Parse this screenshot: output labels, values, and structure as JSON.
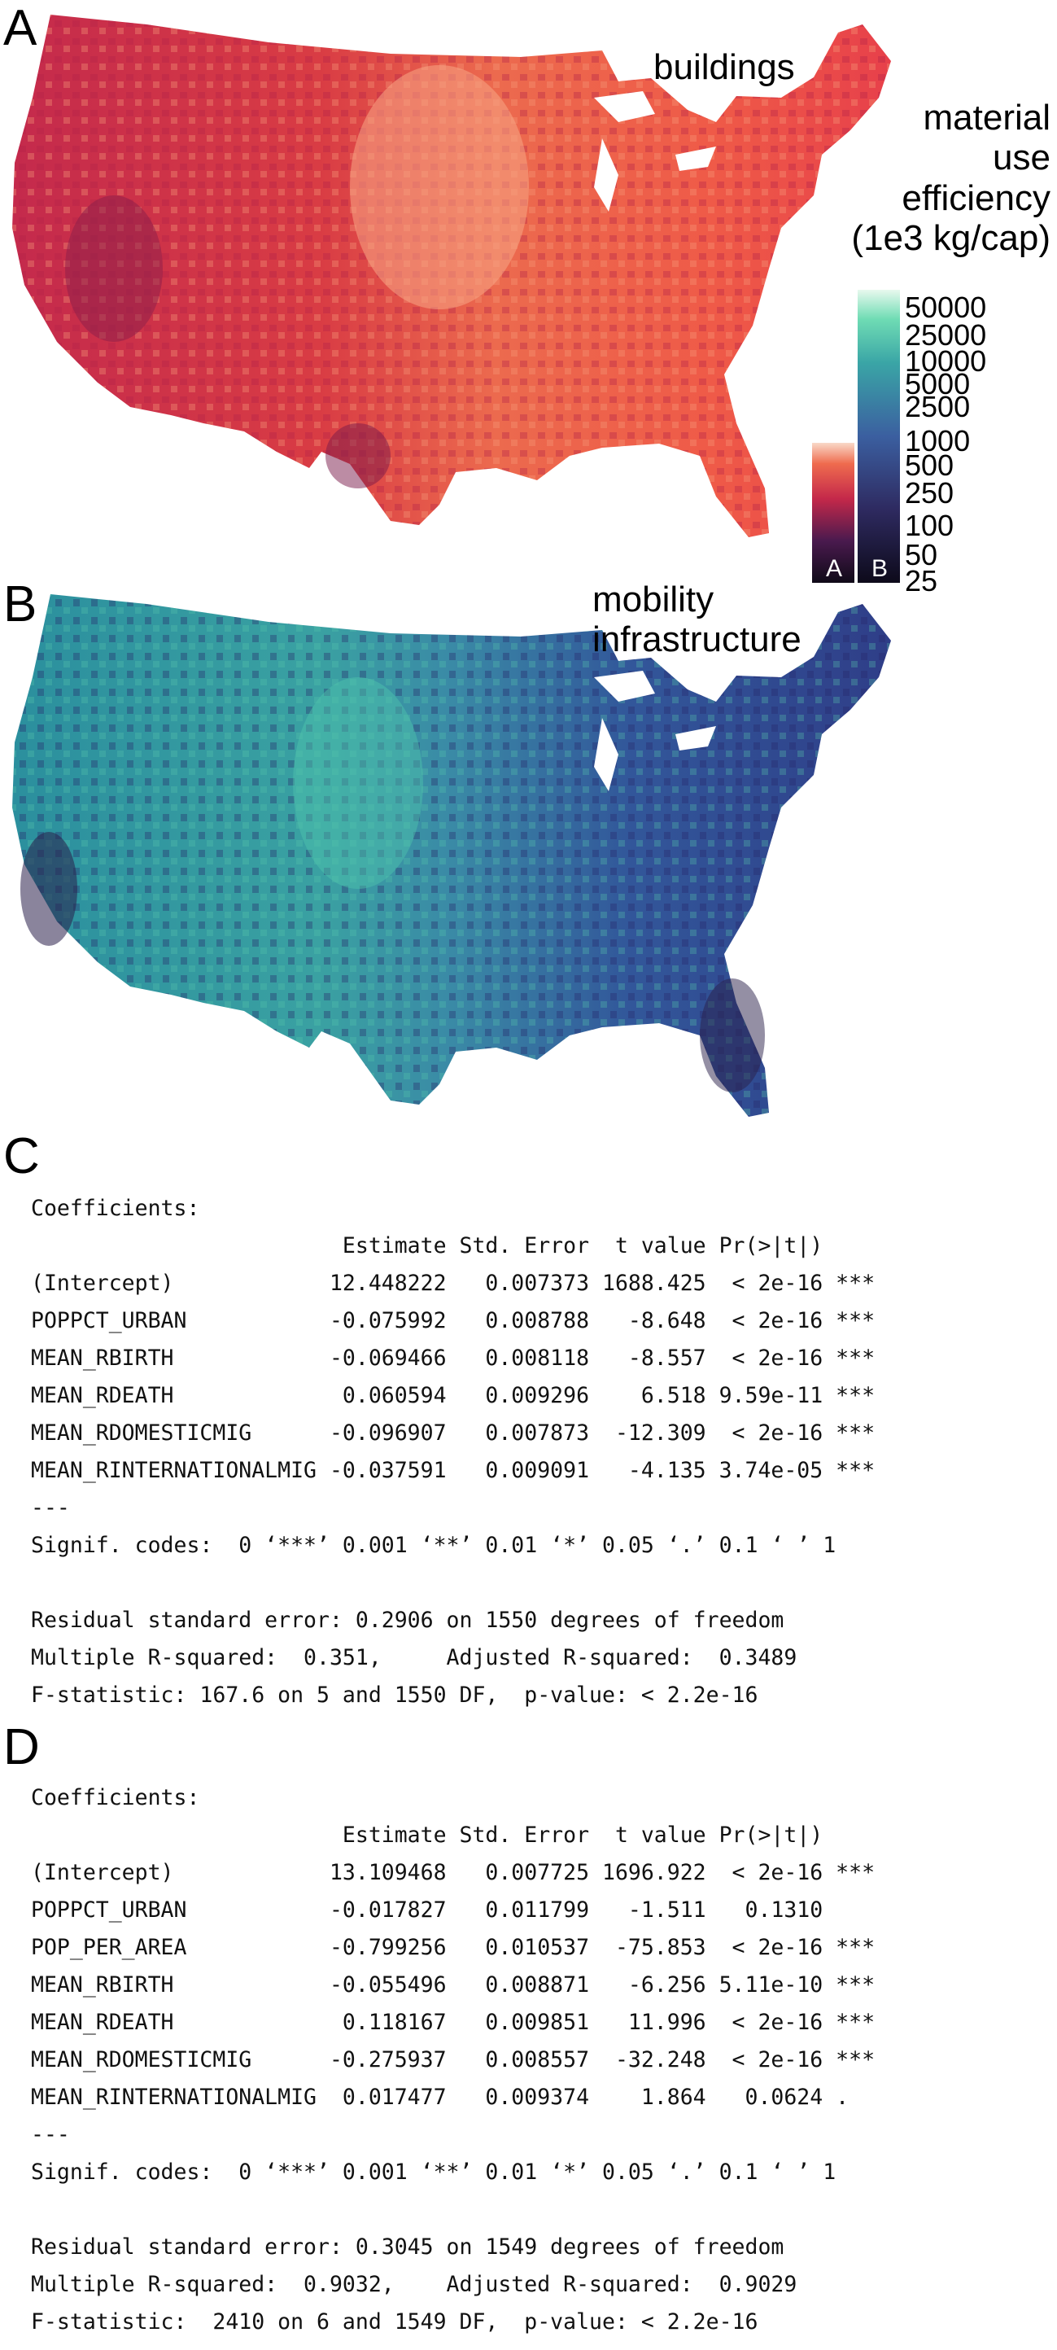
{
  "panel_a": {
    "letter": "A",
    "title": "buildings",
    "legend_title": [
      "material",
      "use",
      "efficiency",
      "(1e3 kg/cap)"
    ],
    "legend_ticks": [
      "50000",
      "25000",
      "10000",
      "5000",
      "2500",
      "1000",
      "500",
      "250",
      "100",
      "50",
      "25"
    ],
    "bar_a_label": "A",
    "bar_b_label": "B",
    "colors": {
      "low": "#1e1530",
      "mid": "#c72b4a",
      "high": "#f7b49a"
    }
  },
  "panel_b": {
    "letter": "B",
    "title_lines": [
      "mobility",
      "infrastructure"
    ],
    "colors": {
      "low": "#2a1f4a",
      "mid": "#3a7faa",
      "high": "#4fd0b0"
    }
  },
  "panel_c": {
    "letter": "C",
    "lines": [
      "Coefficients:",
      "                        Estimate Std. Error  t value Pr(>|t|)    ",
      "(Intercept)            12.448222   0.007373 1688.425  < 2e-16 ***",
      "POPPCT_URBAN           -0.075992   0.008788   -8.648  < 2e-16 ***",
      "MEAN_RBIRTH            -0.069466   0.008118   -8.557  < 2e-16 ***",
      "MEAN_RDEATH             0.060594   0.009296    6.518 9.59e-11 ***",
      "MEAN_RDOMESTICMIG      -0.096907   0.007873  -12.309  < 2e-16 ***",
      "MEAN_RINTERNATIONALMIG -0.037591   0.009091   -4.135 3.74e-05 ***",
      "---",
      "Signif. codes:  0 ‘***’ 0.001 ‘**’ 0.01 ‘*’ 0.05 ‘.’ 0.1 ‘ ’ 1",
      "",
      "Residual standard error: 0.2906 on 1550 degrees of freedom",
      "Multiple R-squared:  0.351,     Adjusted R-squared:  0.3489",
      "F-statistic: 167.6 on 5 and 1550 DF,  p-value: < 2.2e-16"
    ]
  },
  "panel_d": {
    "letter": "D",
    "lines": [
      "Coefficients:",
      "                        Estimate Std. Error  t value Pr(>|t|)    ",
      "(Intercept)            13.109468   0.007725 1696.922  < 2e-16 ***",
      "POPPCT_URBAN           -0.017827   0.011799   -1.511   0.1310    ",
      "POP_PER_AREA           -0.799256   0.010537  -75.853  < 2e-16 ***",
      "MEAN_RBIRTH            -0.055496   0.008871   -6.256 5.11e-10 ***",
      "MEAN_RDEATH             0.118167   0.009851   11.996  < 2e-16 ***",
      "MEAN_RDOMESTICMIG      -0.275937   0.008557  -32.248  < 2e-16 ***",
      "MEAN_RINTERNATIONALMIG  0.017477   0.009374    1.864   0.0624 .  ",
      "---",
      "Signif. codes:  0 ‘***’ 0.001 ‘**’ 0.01 ‘*’ 0.05 ‘.’ 0.1 ‘ ’ 1",
      "",
      "Residual standard error: 0.3045 on 1549 degrees of freedom",
      "Multiple R-squared:  0.9032,    Adjusted R-squared:  0.9029",
      "F-statistic:  2410 on 6 and 1549 DF,  p-value: < 2.2e-16"
    ]
  }
}
